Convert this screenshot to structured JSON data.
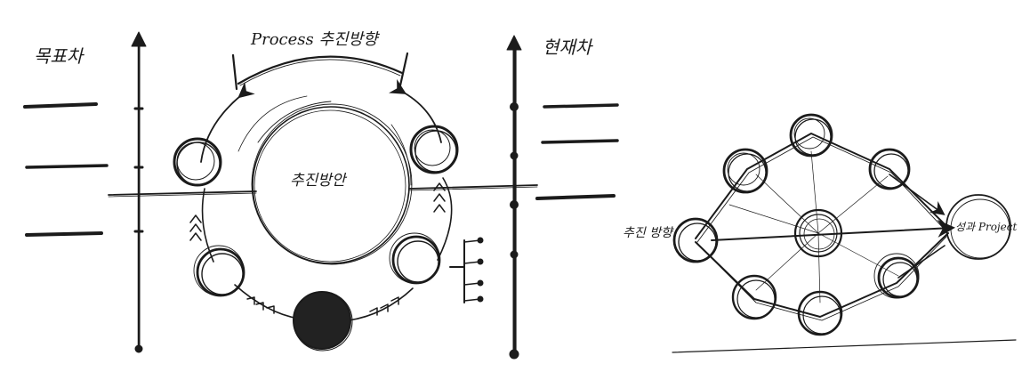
{
  "labels": {
    "left_axis": "목표차",
    "right_axis": "현재차",
    "arc_top": "Process 추진방향",
    "center_left": "추진방안",
    "node_left": "추진 방향",
    "node_right": "성과 Project"
  },
  "colors": {
    "ink": "#1b1b1b",
    "paper": "#ffffff",
    "filled_node": "#222222"
  }
}
